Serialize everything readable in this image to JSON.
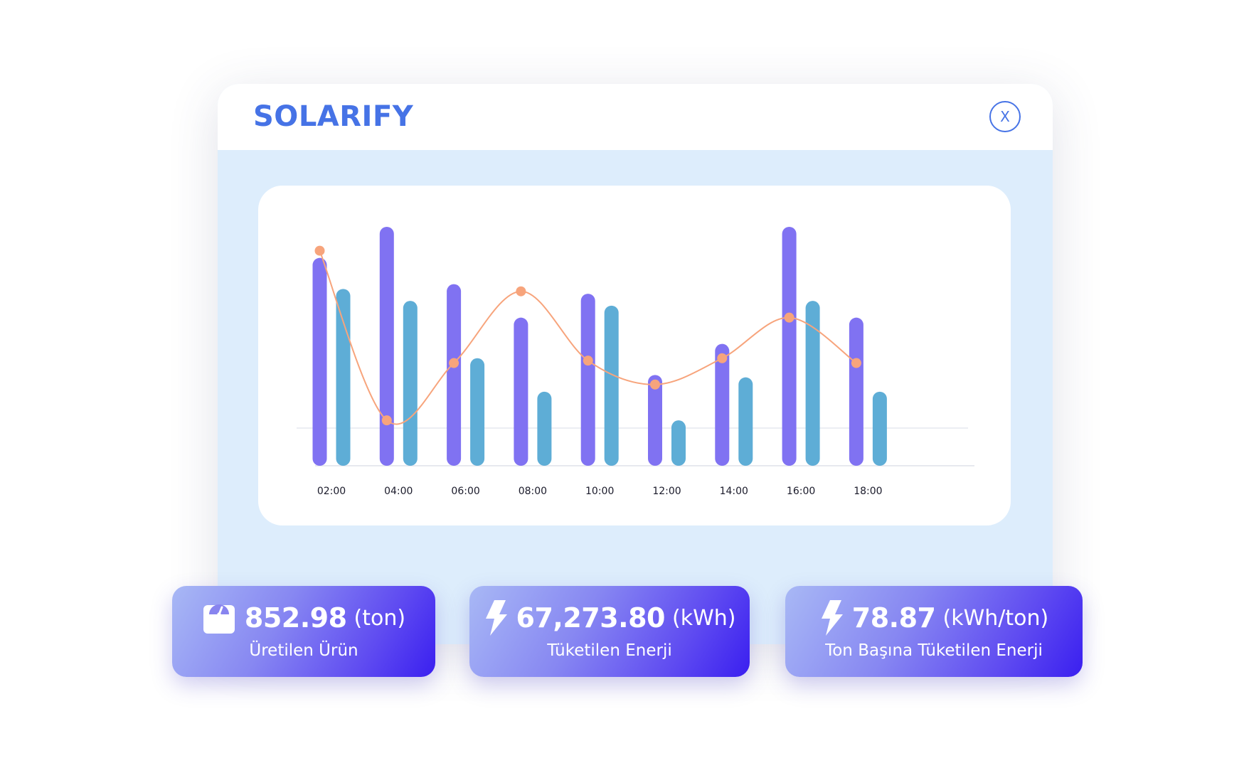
{
  "app": {
    "title": "SOLARIFY",
    "close_label": "X"
  },
  "colors": {
    "accent": "#4673e6",
    "series_1": "#8072f2",
    "series_2": "#5eadd6",
    "line": "#f7a47c",
    "panel_bg": "#ddedfc"
  },
  "chart_data": {
    "type": "bar",
    "categories": [
      "02:00",
      "04:00",
      "06:00",
      "08:00",
      "10:00",
      "12:00",
      "14:00",
      "16:00",
      "18:00"
    ],
    "series": [
      {
        "type": "bar",
        "color": "#8072f2",
        "values": [
          87,
          100,
          76,
          62,
          72,
          38,
          51,
          100,
          62
        ]
      },
      {
        "type": "bar",
        "color": "#5eadd6",
        "values": [
          74,
          69,
          45,
          31,
          67,
          19,
          37,
          69,
          31
        ]
      },
      {
        "type": "line",
        "color": "#f7a47c",
        "values": [
          90,
          19,
          43,
          73,
          44,
          34,
          45,
          62,
          43
        ]
      }
    ],
    "ylim": [
      0,
      100
    ],
    "grid": false,
    "legend": "none"
  },
  "stats": [
    {
      "icon": "scale-icon",
      "value": "852.98",
      "unit": "(ton)",
      "label": "Üretilen Ürün"
    },
    {
      "icon": "lightning-icon",
      "value": "67,273.80",
      "unit": "(kWh)",
      "label": "Tüketilen Enerji"
    },
    {
      "icon": "lightning-icon",
      "value": "78.87",
      "unit": "(kWh/ton)",
      "label": "Ton Başına Tüketilen Enerji"
    }
  ]
}
